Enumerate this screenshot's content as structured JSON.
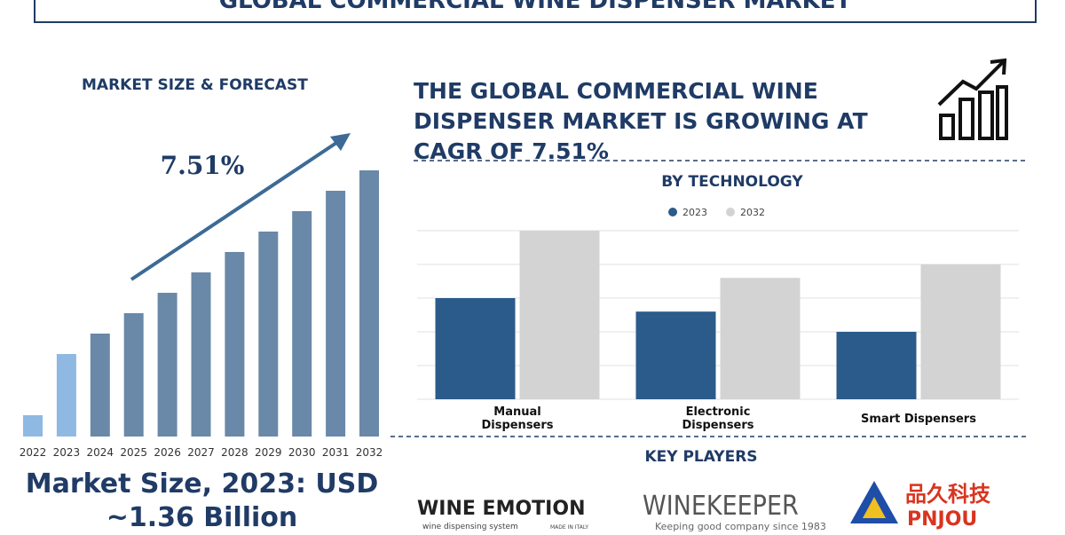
{
  "header": {
    "title": "GLOBAL COMMERCIAL WINE DISPENSER MARKET"
  },
  "headline": "THE GLOBAL COMMERCIAL WINE DISPENSER MARKET IS GROWING AT CAGR OF 7.51%",
  "market_size": "Market Size, 2023: USD ~1.36 Billion",
  "key_players": {
    "title": "KEY PLAYERS",
    "logos": [
      {
        "name": "WINE EMOTION",
        "tagline": "wine dispensing system",
        "note": "MADE IN ITALY"
      },
      {
        "name": "WINEKEEPER",
        "tagline": "Keeping good company since 1983"
      },
      {
        "name": "品久科技",
        "tagline": "PNJOU"
      }
    ]
  },
  "chart_data": [
    {
      "type": "bar",
      "title": "MARKET SIZE & FORECAST",
      "annotation": "7.51%",
      "categories": [
        "2022",
        "2023",
        "2024",
        "2025",
        "2026",
        "2027",
        "2028",
        "2029",
        "2030",
        "2031",
        "2032"
      ],
      "values": [
        24,
        93,
        116,
        139,
        162,
        185,
        208,
        231,
        254,
        277,
        300
      ],
      "colors": [
        "#8fb9e3",
        "#8fb9e3",
        "#6a88a8",
        "#6a88a8",
        "#6a88a8",
        "#6a88a8",
        "#6a88a8",
        "#6a88a8",
        "#6a88a8",
        "#6a88a8",
        "#6a88a8"
      ]
    },
    {
      "type": "grouped_bar",
      "title": "BY TECHNOLOGY",
      "categories": [
        "Manual Dispensers",
        "Electronic Dispensers",
        "Smart Dispensers"
      ],
      "series": [
        {
          "name": "2023",
          "color": "#2b5b8a",
          "values": [
            3,
            2.6,
            2
          ]
        },
        {
          "name": "2032",
          "color": "#d3d3d3",
          "values": [
            5,
            3.6,
            4
          ]
        }
      ],
      "ylim": [
        0,
        5
      ],
      "yticks": [
        0,
        1,
        2,
        3,
        4,
        5
      ],
      "grid": true,
      "legend": "top"
    }
  ]
}
